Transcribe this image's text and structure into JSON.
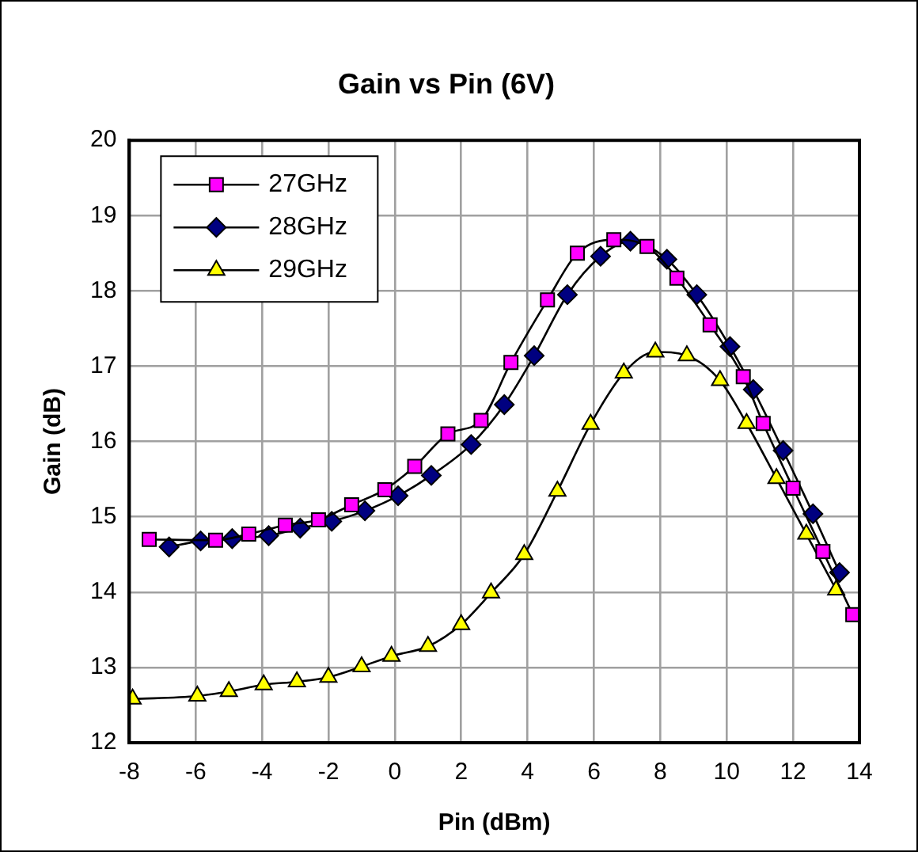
{
  "chart_data": {
    "type": "line",
    "title": "Gain vs Pin (6V)",
    "xlabel": "Pin (dBm)",
    "ylabel": "Gain (dB)",
    "xlim": [
      -8,
      14
    ],
    "xticks": [
      -8,
      -6,
      -4,
      -2,
      0,
      2,
      4,
      6,
      8,
      10,
      12,
      14
    ],
    "ylim": [
      12,
      20
    ],
    "yticks": [
      12,
      13,
      14,
      15,
      16,
      17,
      18,
      19,
      20
    ],
    "grid": true,
    "legend": "top left",
    "line_style": "solid",
    "series": [
      {
        "name": "27GHz",
        "color": "#ff00ff",
        "marker": "square",
        "x": [
          -7.4,
          -5.4,
          -4.4,
          -3.3,
          -2.3,
          -1.3,
          -0.3,
          0.6,
          1.6,
          2.6,
          3.5,
          4.6,
          5.5,
          6.6,
          7.6,
          8.5,
          9.5,
          10.5,
          11.1,
          12.0,
          12.9,
          13.8
        ],
        "values": [
          14.7,
          14.69,
          14.77,
          14.89,
          14.96,
          15.16,
          15.36,
          15.67,
          16.1,
          16.28,
          17.05,
          17.88,
          18.5,
          18.68,
          18.59,
          18.17,
          17.55,
          16.86,
          16.24,
          15.38,
          14.54,
          13.7
        ]
      },
      {
        "name": "28GHz",
        "color": "#000080",
        "marker": "diamond",
        "x": [
          -6.8,
          -5.85,
          -4.9,
          -3.8,
          -2.85,
          -1.9,
          -0.9,
          0.1,
          1.1,
          2.3,
          3.3,
          4.2,
          5.2,
          6.2,
          7.1,
          8.2,
          9.1,
          10.1,
          10.8,
          11.7,
          12.6,
          13.4
        ],
        "values": [
          14.6,
          14.68,
          14.71,
          14.75,
          14.85,
          14.94,
          15.08,
          15.28,
          15.55,
          15.96,
          16.49,
          17.14,
          17.95,
          18.46,
          18.66,
          18.42,
          17.95,
          17.26,
          16.69,
          15.88,
          15.04,
          14.26
        ]
      },
      {
        "name": "29GHz",
        "color": "#ffff00",
        "marker": "triangle",
        "x": [
          -7.9,
          -5.95,
          -5.0,
          -3.95,
          -2.95,
          -2.0,
          -1.0,
          -0.1,
          1.0,
          2.0,
          2.9,
          3.9,
          4.9,
          5.9,
          6.9,
          7.85,
          8.8,
          9.8,
          10.6,
          11.5,
          12.4,
          13.3
        ],
        "values": [
          12.58,
          12.62,
          12.68,
          12.77,
          12.81,
          12.87,
          13.01,
          13.15,
          13.28,
          13.57,
          13.99,
          14.5,
          15.34,
          16.23,
          16.91,
          17.19,
          17.14,
          16.81,
          16.24,
          15.51,
          14.77,
          14.03
        ]
      }
    ]
  }
}
